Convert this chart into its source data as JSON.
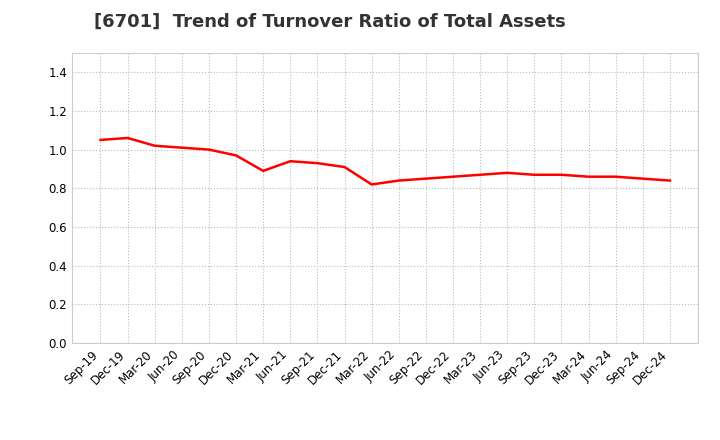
{
  "title": "[6701]  Trend of Turnover Ratio of Total Assets",
  "x_labels": [
    "Sep-19",
    "Dec-19",
    "Mar-20",
    "Jun-20",
    "Sep-20",
    "Dec-20",
    "Mar-21",
    "Jun-21",
    "Sep-21",
    "Dec-21",
    "Mar-22",
    "Jun-22",
    "Sep-22",
    "Dec-22",
    "Mar-23",
    "Jun-23",
    "Sep-23",
    "Dec-23",
    "Mar-24",
    "Jun-24",
    "Sep-24",
    "Dec-24"
  ],
  "values": [
    1.05,
    1.06,
    1.02,
    1.01,
    1.0,
    0.97,
    0.89,
    0.94,
    0.93,
    0.91,
    0.82,
    0.84,
    0.85,
    0.86,
    0.87,
    0.88,
    0.87,
    0.87,
    0.86,
    0.86,
    0.85,
    0.84
  ],
  "line_color": "#FF0000",
  "line_width": 1.8,
  "ylim": [
    0.0,
    1.5
  ],
  "yticks": [
    0.0,
    0.2,
    0.4,
    0.6,
    0.8,
    1.0,
    1.2,
    1.4
  ],
  "grid_color": "#BBBBBB",
  "grid_style": "dotted",
  "bg_color": "#FFFFFF",
  "title_fontsize": 13,
  "tick_fontsize": 8.5
}
